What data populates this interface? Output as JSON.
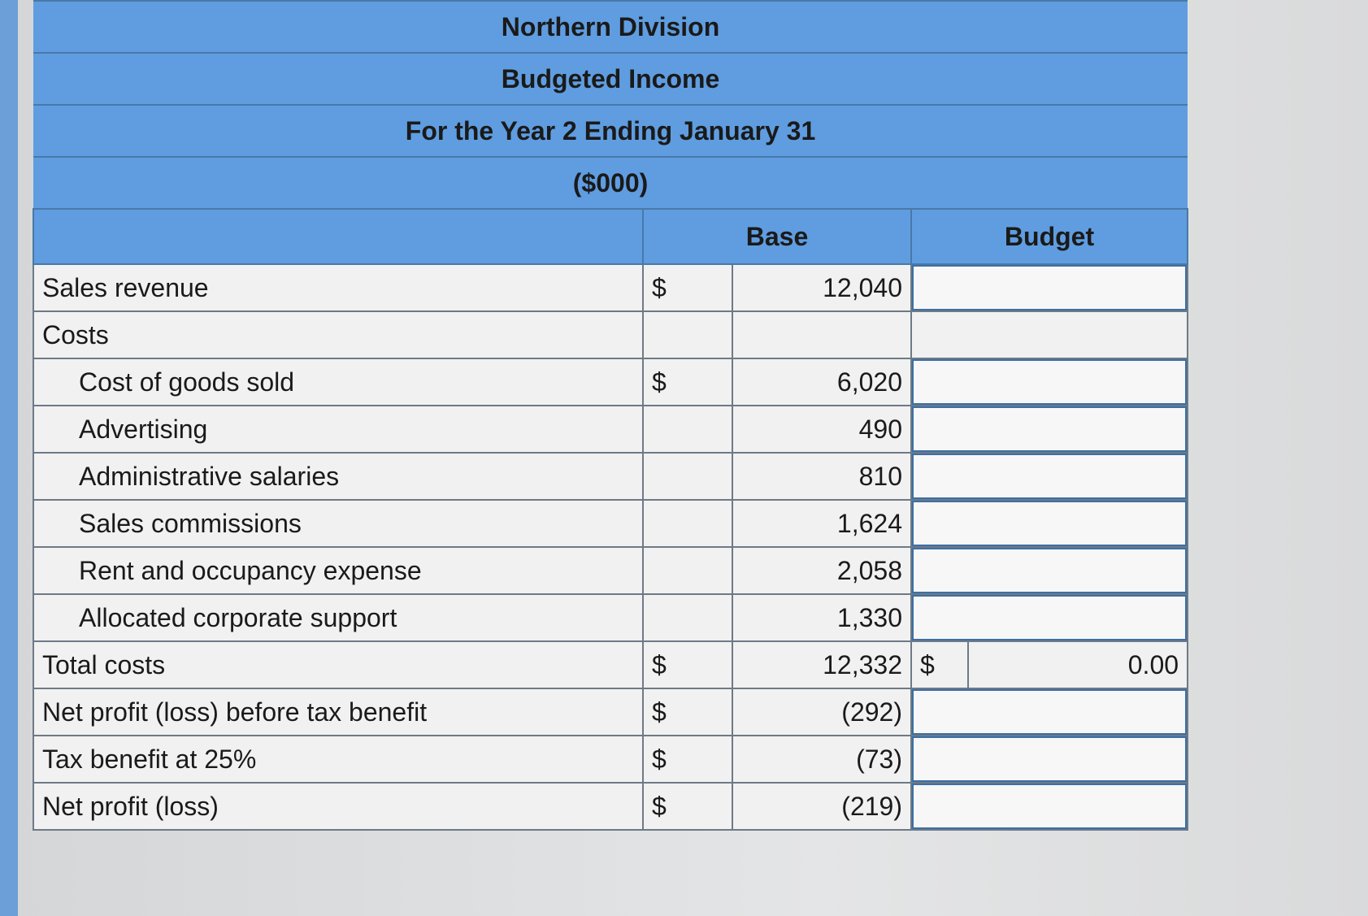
{
  "header": {
    "lines": [
      "Northern Division",
      "Budgeted Income",
      "For the Year 2 Ending January 31",
      "($000)"
    ]
  },
  "table": {
    "columns": [
      "Base",
      "Budget"
    ],
    "rows": [
      {
        "label": "Sales revenue",
        "currency": "$",
        "base": "12,040"
      },
      {
        "label": "Costs"
      },
      {
        "label": "Cost of goods sold",
        "currency": "$",
        "base": "6,020"
      },
      {
        "label": "Advertising",
        "base": "490"
      },
      {
        "label": "Administrative salaries",
        "base": "810"
      },
      {
        "label": "Sales commissions",
        "base": "1,624"
      },
      {
        "label": "Rent and occupancy expense",
        "base": "2,058"
      },
      {
        "label": "Allocated corporate support",
        "base": "1,330"
      },
      {
        "label": "Total costs",
        "currency": "$",
        "base": "12,332",
        "budget_currency": "$",
        "budget": "0.00"
      },
      {
        "label": "Net profit (loss) before tax benefit",
        "currency": "$",
        "base": "(292)"
      },
      {
        "label": "Tax benefit at 25%",
        "currency": "$",
        "base": "(73)"
      },
      {
        "label": "Net profit (loss)",
        "currency": "$",
        "base": "(219)"
      }
    ]
  }
}
